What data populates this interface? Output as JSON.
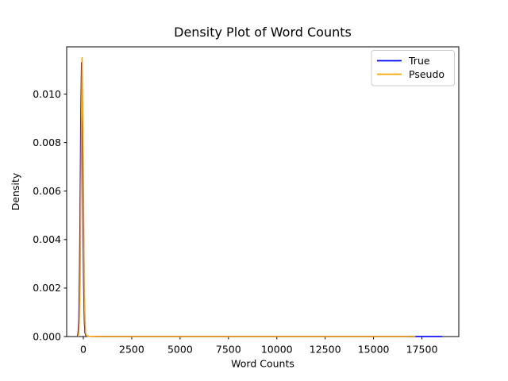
{
  "figure": {
    "background": "#ffffff"
  },
  "chart_data": {
    "type": "line",
    "title": "Density Plot of Word Counts",
    "xlabel": "Word Counts",
    "ylabel": "Density",
    "grid": false,
    "xlim": [
      -862,
      19406
    ],
    "ylim": [
      0,
      0.01195
    ],
    "xticks": {
      "values": [
        0,
        2500,
        5000,
        7500,
        10000,
        12500,
        15000,
        17500
      ],
      "labels": [
        "0",
        "2500",
        "5000",
        "7500",
        "10000",
        "12500",
        "15000",
        "17500"
      ]
    },
    "yticks": {
      "values": [
        0.0,
        0.002,
        0.004,
        0.006,
        0.008,
        0.01
      ],
      "labels": [
        "0.000",
        "0.002",
        "0.004",
        "0.006",
        "0.008",
        "0.010"
      ]
    },
    "legend": {
      "position": "upper right",
      "entries": [
        {
          "label": "True",
          "color": "#0000ff"
        },
        {
          "label": "Pseudo",
          "color": "#ffa500"
        }
      ]
    },
    "series": [
      {
        "name": "True",
        "color": "#0000ff",
        "x": [
          -305,
          -270,
          -235,
          -200,
          -165,
          -130,
          -90,
          -50,
          -15,
          20,
          55,
          90,
          130,
          180,
          280,
          480,
          1000,
          3000,
          8000,
          15000,
          18550
        ],
        "y": [
          0,
          0.00012,
          0.0006,
          0.0021,
          0.0051,
          0.0088,
          0.0113,
          0.0088,
          0.0051,
          0.0021,
          0.0006,
          0.00015,
          5e-05,
          2e-05,
          1e-05,
          6e-06,
          4e-06,
          3e-06,
          2e-06,
          2e-06,
          2e-06
        ]
      },
      {
        "name": "Pseudo",
        "color": "#ffa500",
        "x": [
          -275,
          -240,
          -205,
          -170,
          -135,
          -100,
          -60,
          -20,
          15,
          50,
          85,
          120,
          160,
          210,
          310,
          510,
          1000,
          3000,
          8000,
          15000,
          17160
        ],
        "y": [
          0,
          0.00012,
          0.0006,
          0.0021,
          0.0051,
          0.0088,
          0.0115,
          0.0088,
          0.0051,
          0.0021,
          0.0006,
          0.00015,
          5e-05,
          2e-05,
          1e-05,
          6e-06,
          4e-06,
          3e-06,
          2e-06,
          2e-06,
          2e-06
        ]
      }
    ]
  }
}
